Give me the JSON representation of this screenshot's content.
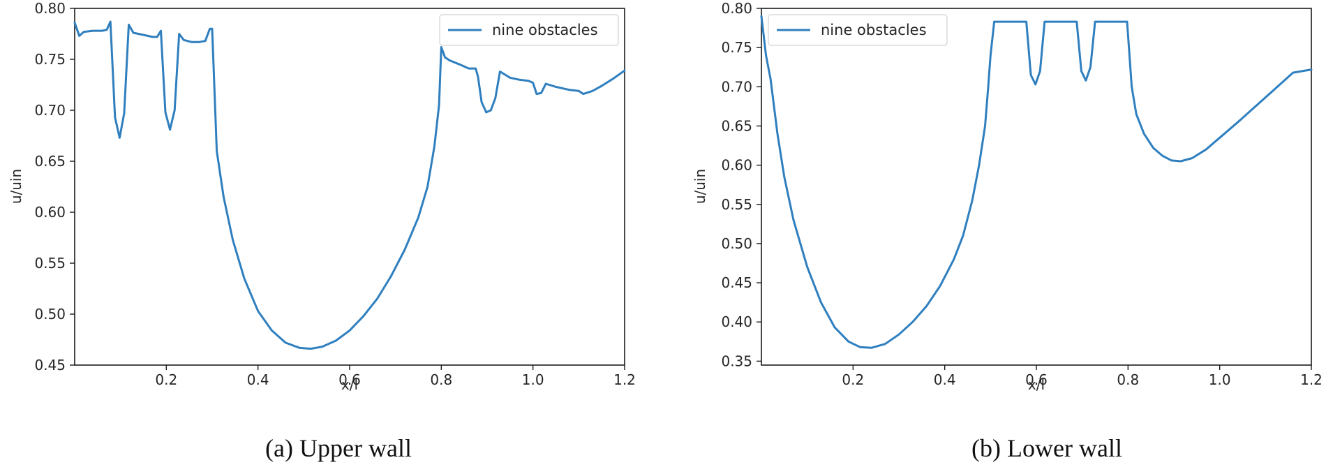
{
  "colors": {
    "series": "#2f7fbf"
  },
  "chart_data": [
    {
      "type": "line",
      "caption": "(a) Upper wall",
      "xlabel": "x/l",
      "ylabel": "u/uin",
      "xlim": [
        0.0,
        1.2
      ],
      "ylim": [
        0.45,
        0.8
      ],
      "xticks": [
        0.2,
        0.4,
        0.6,
        0.8,
        1.0,
        1.2
      ],
      "xtick_labels": [
        "0.2",
        "0.4",
        "0.6",
        "0.8",
        "1.0",
        "1.2"
      ],
      "yticks": [
        0.45,
        0.5,
        0.55,
        0.6,
        0.65,
        0.7,
        0.75,
        0.8
      ],
      "ytick_labels": [
        "0.45",
        "0.50",
        "0.55",
        "0.60",
        "0.65",
        "0.70",
        "0.75",
        "0.80"
      ],
      "legend": "top-right",
      "series": [
        {
          "name": "nine obstacles",
          "x": [
            0.0,
            0.01,
            0.02,
            0.04,
            0.06,
            0.07,
            0.078,
            0.088,
            0.098,
            0.108,
            0.118,
            0.128,
            0.15,
            0.17,
            0.18,
            0.188,
            0.198,
            0.208,
            0.218,
            0.228,
            0.238,
            0.255,
            0.272,
            0.285,
            0.295,
            0.3,
            0.31,
            0.325,
            0.345,
            0.37,
            0.4,
            0.43,
            0.46,
            0.49,
            0.515,
            0.54,
            0.57,
            0.6,
            0.63,
            0.66,
            0.69,
            0.72,
            0.75,
            0.77,
            0.785,
            0.795,
            0.8,
            0.808,
            0.818,
            0.84,
            0.86,
            0.875,
            0.88,
            0.888,
            0.898,
            0.908,
            0.918,
            0.928,
            0.95,
            0.97,
            0.99,
            1.0,
            1.008,
            1.018,
            1.028,
            1.05,
            1.08,
            1.1,
            1.11,
            1.13,
            1.15,
            1.175,
            1.2
          ],
          "y": [
            0.786,
            0.773,
            0.777,
            0.778,
            0.778,
            0.779,
            0.787,
            0.693,
            0.673,
            0.697,
            0.784,
            0.776,
            0.774,
            0.772,
            0.772,
            0.778,
            0.698,
            0.681,
            0.7,
            0.775,
            0.769,
            0.767,
            0.767,
            0.768,
            0.78,
            0.78,
            0.66,
            0.615,
            0.573,
            0.535,
            0.503,
            0.484,
            0.472,
            0.467,
            0.466,
            0.468,
            0.474,
            0.484,
            0.498,
            0.515,
            0.537,
            0.563,
            0.595,
            0.625,
            0.665,
            0.705,
            0.762,
            0.752,
            0.749,
            0.745,
            0.741,
            0.741,
            0.733,
            0.708,
            0.698,
            0.7,
            0.712,
            0.738,
            0.732,
            0.73,
            0.729,
            0.727,
            0.716,
            0.717,
            0.726,
            0.723,
            0.72,
            0.719,
            0.716,
            0.719,
            0.724,
            0.731,
            0.739
          ]
        }
      ]
    },
    {
      "type": "line",
      "caption": "(b) Lower wall",
      "xlabel": "x/l",
      "ylabel": "u/uin",
      "xlim": [
        0.0,
        1.2
      ],
      "ylim": [
        0.345,
        0.8
      ],
      "xticks": [
        0.2,
        0.4,
        0.6,
        0.8,
        1.0,
        1.2
      ],
      "xtick_labels": [
        "0.2",
        "0.4",
        "0.6",
        "0.8",
        "1.0",
        "1.2"
      ],
      "yticks": [
        0.35,
        0.4,
        0.45,
        0.5,
        0.55,
        0.6,
        0.65,
        0.7,
        0.75,
        0.8
      ],
      "ytick_labels": [
        "0.35",
        "0.40",
        "0.45",
        "0.50",
        "0.55",
        "0.60",
        "0.65",
        "0.70",
        "0.75",
        "0.80"
      ],
      "legend": "top-left",
      "series": [
        {
          "name": "nine obstacles",
          "x": [
            0.0,
            0.01,
            0.02,
            0.035,
            0.05,
            0.07,
            0.1,
            0.13,
            0.16,
            0.19,
            0.215,
            0.24,
            0.27,
            0.3,
            0.33,
            0.36,
            0.39,
            0.42,
            0.44,
            0.46,
            0.475,
            0.488,
            0.495,
            0.5,
            0.508,
            0.518,
            0.54,
            0.56,
            0.578,
            0.588,
            0.598,
            0.608,
            0.618,
            0.64,
            0.665,
            0.688,
            0.698,
            0.708,
            0.718,
            0.728,
            0.75,
            0.775,
            0.798,
            0.808,
            0.818,
            0.835,
            0.855,
            0.875,
            0.895,
            0.915,
            0.94,
            0.97,
            1.0,
            1.04,
            1.08,
            1.12,
            1.16,
            1.2
          ],
          "y": [
            0.79,
            0.74,
            0.71,
            0.64,
            0.585,
            0.53,
            0.47,
            0.425,
            0.393,
            0.375,
            0.368,
            0.367,
            0.372,
            0.384,
            0.4,
            0.42,
            0.446,
            0.48,
            0.51,
            0.555,
            0.6,
            0.65,
            0.7,
            0.74,
            0.783,
            0.783,
            0.783,
            0.783,
            0.783,
            0.715,
            0.703,
            0.72,
            0.783,
            0.783,
            0.783,
            0.783,
            0.72,
            0.708,
            0.725,
            0.783,
            0.783,
            0.783,
            0.783,
            0.7,
            0.665,
            0.64,
            0.622,
            0.612,
            0.606,
            0.605,
            0.609,
            0.62,
            0.635,
            0.655,
            0.676,
            0.697,
            0.718,
            0.722
          ]
        }
      ]
    }
  ]
}
